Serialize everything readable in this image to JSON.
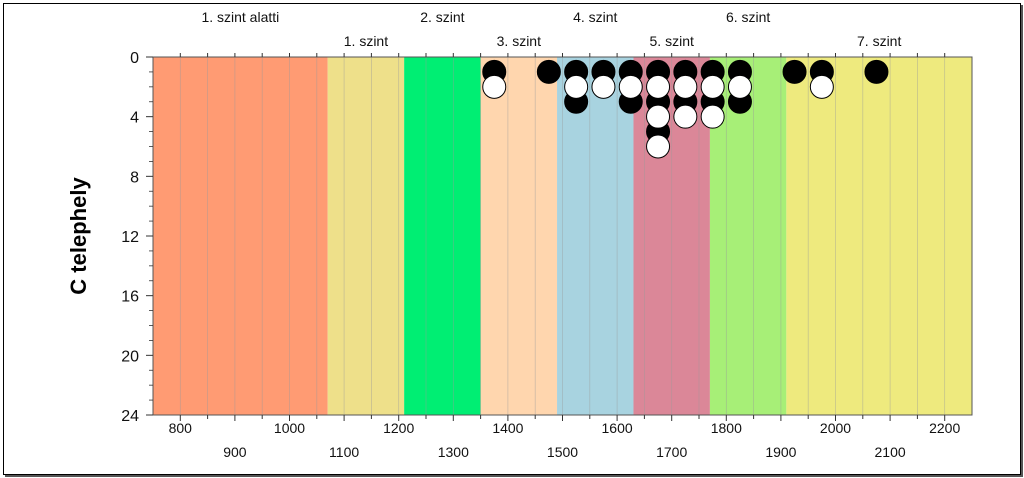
{
  "chart_data": {
    "type": "scatter",
    "title": "",
    "ylabel": "C telephely",
    "xlabel": "",
    "xlim": [
      750,
      2250
    ],
    "ylim": [
      0,
      24
    ],
    "y_inverted": true,
    "x_ticks_top_row": [
      "800",
      "1000",
      "1200",
      "1400",
      "1600",
      "1800",
      "2000",
      "2200"
    ],
    "x_ticks_bottom_row": [
      "900",
      "1100",
      "1300",
      "1500",
      "1700",
      "1900",
      "2100"
    ],
    "y_ticks": [
      "0",
      "4",
      "8",
      "12",
      "16",
      "20",
      "24"
    ],
    "zones": [
      {
        "label": "1. szint alatti",
        "from": 750,
        "to": 1070,
        "color": "#FF9B73",
        "label_row": "top"
      },
      {
        "label": "1. szint",
        "from": 1070,
        "to": 1210,
        "color": "#EEE08A",
        "label_row": "bottom"
      },
      {
        "label": "2. szint",
        "from": 1210,
        "to": 1350,
        "color": "#00EE73",
        "label_row": "top"
      },
      {
        "label": "3. szint",
        "from": 1350,
        "to": 1490,
        "color": "#FFD6AE",
        "label_row": "bottom"
      },
      {
        "label": "4. szint",
        "from": 1490,
        "to": 1630,
        "color": "#A8D3E0",
        "label_row": "top"
      },
      {
        "label": "5. szint",
        "from": 1630,
        "to": 1770,
        "color": "#DB8798",
        "label_row": "bottom"
      },
      {
        "label": "6. szint",
        "from": 1770,
        "to": 1910,
        "color": "#A7EF77",
        "label_row": "top"
      },
      {
        "label": "7. szint",
        "from": 1910,
        "to": 2250,
        "color": "#EEEA7E",
        "label_row": "bottom"
      }
    ],
    "series": [
      {
        "marker": "filled",
        "color": "#000000",
        "points": [
          {
            "x": 1375,
            "y": 1
          },
          {
            "x": 1475,
            "y": 1
          },
          {
            "x": 1525,
            "y": 1
          },
          {
            "x": 1525,
            "y": 3
          },
          {
            "x": 1575,
            "y": 1
          },
          {
            "x": 1625,
            "y": 1
          },
          {
            "x": 1625,
            "y": 3
          },
          {
            "x": 1675,
            "y": 1
          },
          {
            "x": 1675,
            "y": 3
          },
          {
            "x": 1675,
            "y": 5
          },
          {
            "x": 1725,
            "y": 1
          },
          {
            "x": 1725,
            "y": 3
          },
          {
            "x": 1775,
            "y": 1
          },
          {
            "x": 1775,
            "y": 3
          },
          {
            "x": 1825,
            "y": 1
          },
          {
            "x": 1825,
            "y": 3
          },
          {
            "x": 1925,
            "y": 1
          },
          {
            "x": 1975,
            "y": 1
          },
          {
            "x": 2075,
            "y": 1
          }
        ]
      },
      {
        "marker": "open",
        "color": "#ffffff",
        "points": [
          {
            "x": 1375,
            "y": 2
          },
          {
            "x": 1525,
            "y": 2
          },
          {
            "x": 1575,
            "y": 2
          },
          {
            "x": 1625,
            "y": 2
          },
          {
            "x": 1675,
            "y": 2
          },
          {
            "x": 1675,
            "y": 4
          },
          {
            "x": 1675,
            "y": 6
          },
          {
            "x": 1725,
            "y": 2
          },
          {
            "x": 1725,
            "y": 4
          },
          {
            "x": 1775,
            "y": 2
          },
          {
            "x": 1775,
            "y": 4
          },
          {
            "x": 1825,
            "y": 2
          },
          {
            "x": 1975,
            "y": 2
          }
        ]
      }
    ]
  }
}
